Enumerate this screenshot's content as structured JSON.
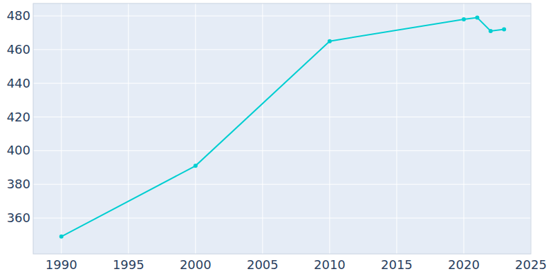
{
  "chart_data": {
    "type": "line",
    "x": [
      1990,
      2000,
      2010,
      2020,
      2021,
      2022,
      2023
    ],
    "values": [
      349,
      391,
      465,
      478,
      479,
      471,
      472
    ],
    "color": "#00ced1",
    "marker": "circle",
    "xlim": [
      1987.9,
      2025
    ],
    "xticks": [
      1990,
      1995,
      2000,
      2005,
      2010,
      2015,
      2020,
      2025
    ],
    "ylim": [
      338.7,
      487.4
    ],
    "yticks": [
      360,
      380,
      400,
      420,
      440,
      460,
      480
    ],
    "grid": true
  }
}
